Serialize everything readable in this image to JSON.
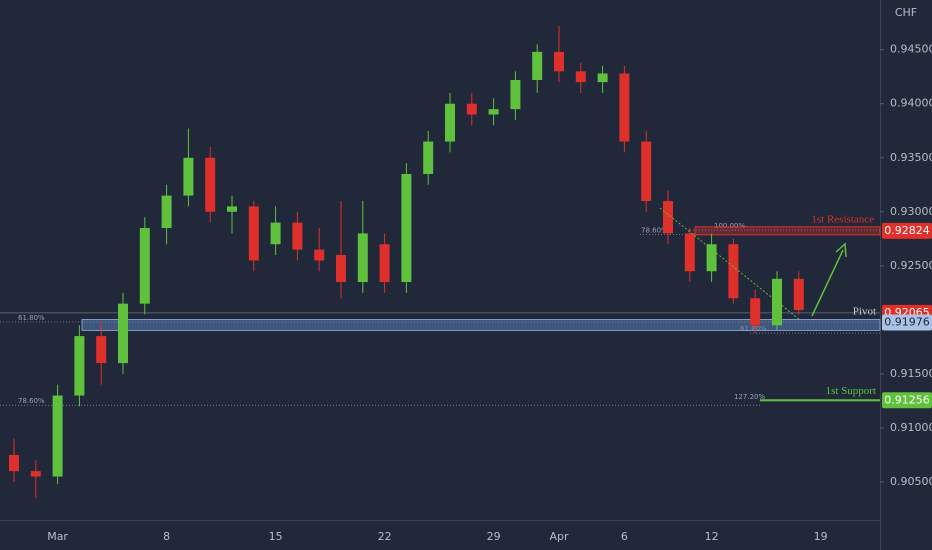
{
  "chart_data": {
    "type": "candlestick",
    "currency": "CHF",
    "categories": [
      null,
      null,
      "Mar",
      null,
      null,
      null,
      null,
      "8",
      null,
      null,
      null,
      null,
      "15",
      null,
      null,
      null,
      null,
      "22",
      null,
      null,
      null,
      null,
      "29",
      null,
      null,
      "Apr",
      null,
      null,
      "6",
      null,
      null,
      null,
      "12",
      null,
      null,
      null,
      null,
      "19"
    ],
    "candles": [
      {
        "open": 0.9075,
        "high": 0.909,
        "low": 0.905,
        "close": 0.906
      },
      {
        "open": 0.906,
        "high": 0.907,
        "low": 0.9035,
        "close": 0.9055
      },
      {
        "open": 0.9055,
        "high": 0.914,
        "low": 0.9048,
        "close": 0.913
      },
      {
        "open": 0.913,
        "high": 0.9195,
        "low": 0.912,
        "close": 0.9185
      },
      {
        "open": 0.9185,
        "high": 0.9198,
        "low": 0.914,
        "close": 0.916
      },
      {
        "open": 0.916,
        "high": 0.9225,
        "low": 0.915,
        "close": 0.9215
      },
      {
        "open": 0.9215,
        "high": 0.9295,
        "low": 0.9205,
        "close": 0.9285
      },
      {
        "open": 0.9285,
        "high": 0.9325,
        "low": 0.927,
        "close": 0.9315
      },
      {
        "open": 0.9315,
        "high": 0.9377,
        "low": 0.9305,
        "close": 0.935
      },
      {
        "open": 0.935,
        "high": 0.936,
        "low": 0.929,
        "close": 0.93
      },
      {
        "open": 0.93,
        "high": 0.9315,
        "low": 0.928,
        "close": 0.9305
      },
      {
        "open": 0.9305,
        "high": 0.931,
        "low": 0.9245,
        "close": 0.9255
      },
      {
        "open": 0.927,
        "high": 0.9305,
        "low": 0.926,
        "close": 0.929
      },
      {
        "open": 0.929,
        "high": 0.93,
        "low": 0.9255,
        "close": 0.9265
      },
      {
        "open": 0.9265,
        "high": 0.9285,
        "low": 0.9245,
        "close": 0.9255
      },
      {
        "open": 0.926,
        "high": 0.931,
        "low": 0.922,
        "close": 0.9235
      },
      {
        "open": 0.9235,
        "high": 0.931,
        "low": 0.9225,
        "close": 0.928
      },
      {
        "open": 0.927,
        "high": 0.928,
        "low": 0.9225,
        "close": 0.9235
      },
      {
        "open": 0.9235,
        "high": 0.9345,
        "low": 0.9225,
        "close": 0.9335
      },
      {
        "open": 0.9335,
        "high": 0.9375,
        "low": 0.9325,
        "close": 0.9365
      },
      {
        "open": 0.9365,
        "high": 0.941,
        "low": 0.9355,
        "close": 0.94
      },
      {
        "open": 0.94,
        "high": 0.941,
        "low": 0.938,
        "close": 0.939
      },
      {
        "open": 0.939,
        "high": 0.9405,
        "low": 0.938,
        "close": 0.9395
      },
      {
        "open": 0.9395,
        "high": 0.943,
        "low": 0.9385,
        "close": 0.9422
      },
      {
        "open": 0.9422,
        "high": 0.9455,
        "low": 0.941,
        "close": 0.9448
      },
      {
        "open": 0.9448,
        "high": 0.9472,
        "low": 0.942,
        "close": 0.943
      },
      {
        "open": 0.943,
        "high": 0.9438,
        "low": 0.941,
        "close": 0.942
      },
      {
        "open": 0.942,
        "high": 0.9435,
        "low": 0.941,
        "close": 0.9428
      },
      {
        "open": 0.9428,
        "high": 0.9435,
        "low": 0.9355,
        "close": 0.9365
      },
      {
        "open": 0.9365,
        "high": 0.9375,
        "low": 0.93,
        "close": 0.931
      },
      {
        "open": 0.931,
        "high": 0.932,
        "low": 0.927,
        "close": 0.928
      },
      {
        "open": 0.928,
        "high": 0.9285,
        "low": 0.9235,
        "close": 0.9245
      },
      {
        "open": 0.9245,
        "high": 0.928,
        "low": 0.9235,
        "close": 0.927
      },
      {
        "open": 0.927,
        "high": 0.9275,
        "low": 0.9215,
        "close": 0.922
      },
      {
        "open": 0.922,
        "high": 0.9228,
        "low": 0.9188,
        "close": 0.9195
      },
      {
        "open": 0.9195,
        "high": 0.9245,
        "low": 0.919,
        "close": 0.9238
      },
      {
        "open": 0.9238,
        "high": 0.9245,
        "low": 0.9205,
        "close": 0.9209
      },
      null
    ],
    "up_color": "#5fc13c",
    "down_color": "#e0302b",
    "ylim": [
      0.90148,
      0.9496
    ],
    "yticks": [
      {
        "value": 0.905,
        "label": "0.90500"
      },
      {
        "value": 0.91,
        "label": "0.91000"
      },
      {
        "value": 0.915,
        "label": "0.91500"
      },
      {
        "value": 0.925,
        "label": "0.92500"
      },
      {
        "value": 0.93,
        "label": "0.93000"
      },
      {
        "value": 0.935,
        "label": "0.93500"
      },
      {
        "value": 0.94,
        "label": "0.94000"
      },
      {
        "value": 0.945,
        "label": "0.94500"
      }
    ],
    "levels": [
      {
        "name": "1st Resistance",
        "value": 0.92824,
        "color": "#e0302b"
      },
      {
        "name": "Pivot",
        "value": 0.92065,
        "color": "#e0302b"
      },
      {
        "value": 0.91976,
        "color": "#a9c2e6"
      },
      {
        "name": "1st Support",
        "value": 0.91256,
        "color": "#5fc13c"
      }
    ],
    "fib_levels": [
      {
        "label": "61.80%",
        "value": 0.9198
      },
      {
        "label": "78.60%",
        "value": 0.9121
      },
      {
        "label": "78.60%",
        "value": 0.9279
      },
      {
        "label": "100.00%",
        "value": 0.9283
      },
      {
        "label": "61.80%",
        "value": 0.91877
      },
      {
        "label": "127.20%",
        "value": 0.9125
      }
    ]
  }
}
